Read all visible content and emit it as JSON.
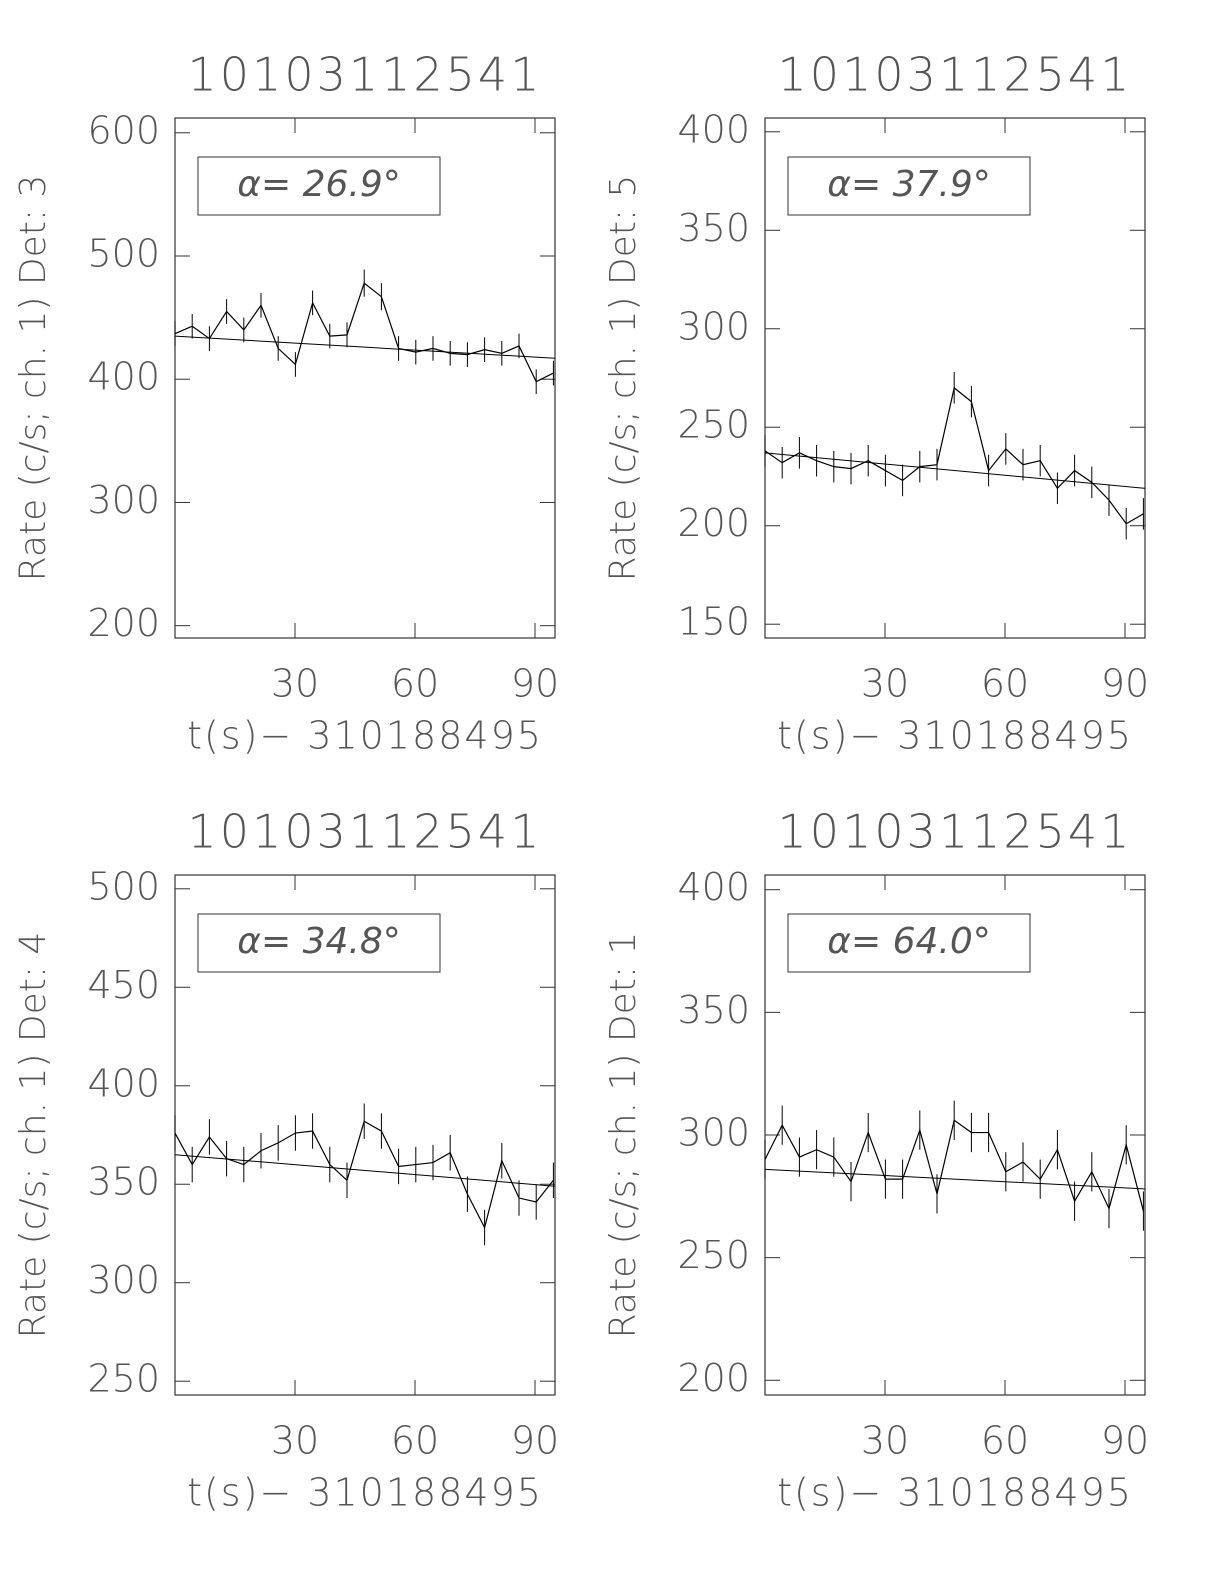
{
  "chart_data": [
    {
      "type": "line",
      "title": "10103112541",
      "ylabel": "Rate (c/s; ch. 1) Det: 3",
      "xlabel": "t(s)− 310188495",
      "annotation": "α= 26.9°",
      "color": "#000000",
      "xlim": [
        0,
        95
      ],
      "xticks": [
        30,
        60,
        90
      ],
      "ylim": [
        190,
        612
      ],
      "yticks": [
        200,
        300,
        400,
        500,
        600
      ],
      "x": [
        0,
        4.3,
        8.6,
        12.9,
        17.2,
        21.5,
        25.8,
        30.1,
        34.4,
        38.7,
        43,
        47.3,
        51.6,
        55.9,
        60.2,
        64.5,
        68.8,
        73.1,
        77.4,
        81.7,
        86,
        90.3,
        94.6
      ],
      "values": [
        437,
        443,
        433,
        455,
        440,
        460,
        425,
        412,
        462,
        435,
        436,
        478,
        467,
        425,
        422,
        425,
        421,
        420,
        424,
        421,
        427,
        398,
        405
      ],
      "errors": [
        10,
        10,
        10,
        10,
        10,
        10,
        10,
        10,
        10,
        10,
        10,
        11,
        11,
        10,
        10,
        10,
        10,
        10,
        10,
        10,
        10,
        10,
        10
      ],
      "fit": {
        "x": [
          0,
          95
        ],
        "values": [
          435,
          417
        ]
      }
    },
    {
      "type": "line",
      "title": "10103112541",
      "ylabel": "Rate (c/s; ch. 1) Det: 5",
      "xlabel": "t(s)− 310188495",
      "annotation": "α= 37.9°",
      "color": "#000000",
      "xlim": [
        0,
        95
      ],
      "xticks": [
        30,
        60,
        90
      ],
      "ylim": [
        143,
        407
      ],
      "yticks": [
        150,
        200,
        250,
        300,
        350,
        400
      ],
      "x": [
        0,
        4.3,
        8.6,
        12.9,
        17.2,
        21.5,
        25.8,
        30.1,
        34.4,
        38.7,
        43,
        47.3,
        51.6,
        55.9,
        60.2,
        64.5,
        68.8,
        73.1,
        77.4,
        81.7,
        86,
        90.3,
        94.6
      ],
      "values": [
        238,
        232,
        237,
        233,
        230,
        229,
        233,
        228,
        223,
        230,
        231,
        270,
        263,
        228,
        239,
        231,
        233,
        219,
        228,
        222,
        213,
        201,
        206
      ],
      "errors": [
        8,
        8,
        8,
        8,
        8,
        8,
        8,
        8,
        8,
        8,
        8,
        8,
        8,
        8,
        8,
        8,
        8,
        8,
        8,
        8,
        8,
        8,
        8
      ],
      "fit": {
        "x": [
          0,
          95
        ],
        "values": [
          237,
          219
        ]
      }
    },
    {
      "type": "line",
      "title": "10103112541",
      "ylabel": "Rate (c/s; ch. 1) Det: 4",
      "xlabel": "t(s)− 310188495",
      "annotation": "α= 34.8°",
      "color": "#000000",
      "xlim": [
        0,
        95
      ],
      "xticks": [
        30,
        60,
        90
      ],
      "ylim": [
        243,
        507
      ],
      "yticks": [
        250,
        300,
        350,
        400,
        450,
        500
      ],
      "x": [
        0,
        4.3,
        8.6,
        12.9,
        17.2,
        21.5,
        25.8,
        30.1,
        34.4,
        38.7,
        43,
        47.3,
        51.6,
        55.9,
        60.2,
        64.5,
        68.8,
        73.1,
        77.4,
        81.7,
        86,
        90.3,
        94.6
      ],
      "values": [
        376,
        360,
        374,
        363,
        360,
        367,
        371,
        376,
        377,
        360,
        352,
        382,
        377,
        359,
        360,
        361,
        366,
        345,
        328,
        362,
        343,
        341,
        352
      ],
      "errors": [
        9,
        9,
        9,
        9,
        9,
        9,
        9,
        9,
        9,
        9,
        9,
        9,
        9,
        9,
        9,
        9,
        9,
        9,
        9,
        9,
        9,
        9,
        9
      ],
      "fit": {
        "x": [
          0,
          95
        ],
        "values": [
          365,
          349
        ]
      }
    },
    {
      "type": "line",
      "title": "10103112541",
      "ylabel": "Rate (c/s; ch. 1) Det: 1",
      "xlabel": "t(s)− 310188495",
      "annotation": "α= 64.0°",
      "color": "#000000",
      "xlim": [
        0,
        95
      ],
      "xticks": [
        30,
        60,
        90
      ],
      "ylim": [
        194,
        406
      ],
      "yticks": [
        200,
        250,
        300,
        350,
        400
      ],
      "x": [
        0,
        4.3,
        8.6,
        12.9,
        17.2,
        21.5,
        25.8,
        30.1,
        34.4,
        38.7,
        43,
        47.3,
        51.6,
        55.9,
        60.2,
        64.5,
        68.8,
        73.1,
        77.4,
        81.7,
        86,
        90.3,
        94.6
      ],
      "values": [
        290,
        304,
        291,
        294,
        291,
        281,
        301,
        282,
        282,
        302,
        276,
        306,
        301,
        301,
        285,
        289,
        282,
        294,
        273,
        285,
        270,
        296,
        269
      ],
      "errors": [
        8,
        8,
        8,
        8,
        8,
        8,
        8,
        8,
        8,
        8,
        8,
        8,
        8,
        8,
        8,
        8,
        8,
        8,
        8,
        8,
        8,
        8,
        8
      ],
      "fit": {
        "x": [
          0,
          95
        ],
        "values": [
          286,
          278
        ]
      }
    }
  ]
}
